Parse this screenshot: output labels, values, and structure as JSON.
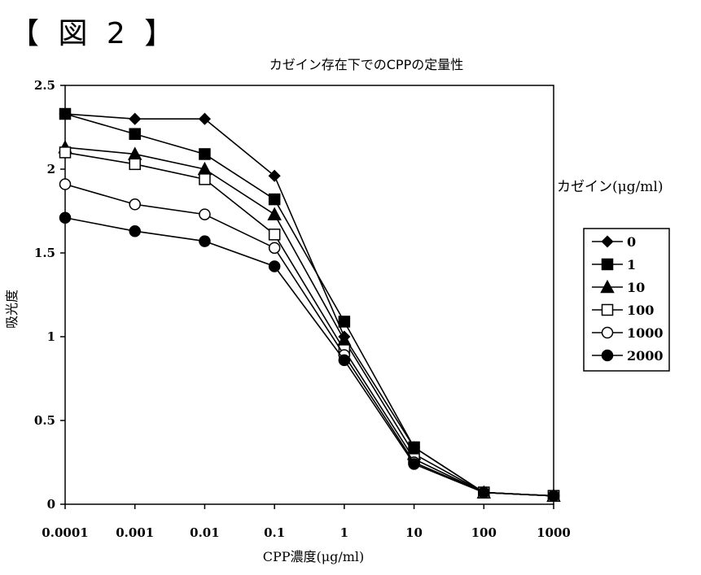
{
  "figure_label": "【 図 2 】",
  "chart_data": {
    "type": "line",
    "title": "カゼイン存在下でのCPPの定量性",
    "xlabel": "CPP濃度(μg/ml)",
    "ylabel": "吸光度",
    "x_scale": "log",
    "x": [
      "0.0001",
      "0.001",
      "0.01",
      "0.1",
      "1",
      "10",
      "100",
      "1000"
    ],
    "ylim": [
      0,
      2.5
    ],
    "yticks": [
      "0",
      "0.5",
      "1",
      "1.5",
      "2",
      "2.5"
    ],
    "grid": false,
    "legend_title": "カゼイン(μg/ml)",
    "legend_position": "right",
    "series": [
      {
        "name": "0",
        "marker": "diamond-filled",
        "values": [
          2.33,
          2.3,
          2.3,
          1.96,
          1.0,
          0.34,
          0.07,
          0.05
        ]
      },
      {
        "name": "1",
        "marker": "square-filled",
        "values": [
          2.33,
          2.21,
          2.09,
          1.82,
          1.09,
          0.34,
          0.07,
          0.05
        ]
      },
      {
        "name": "10",
        "marker": "triangle-filled",
        "values": [
          2.13,
          2.09,
          2.0,
          1.73,
          0.98,
          0.3,
          0.07,
          0.05
        ]
      },
      {
        "name": "100",
        "marker": "square-open",
        "values": [
          2.1,
          2.03,
          1.94,
          1.61,
          0.92,
          0.27,
          0.07,
          0.05
        ]
      },
      {
        "name": "1000",
        "marker": "circle-open",
        "values": [
          1.91,
          1.79,
          1.73,
          1.53,
          0.89,
          0.25,
          0.07,
          0.05
        ]
      },
      {
        "name": "2000",
        "marker": "circle-filled",
        "values": [
          1.71,
          1.63,
          1.57,
          1.42,
          0.86,
          0.24,
          0.07,
          0.05
        ]
      }
    ]
  }
}
